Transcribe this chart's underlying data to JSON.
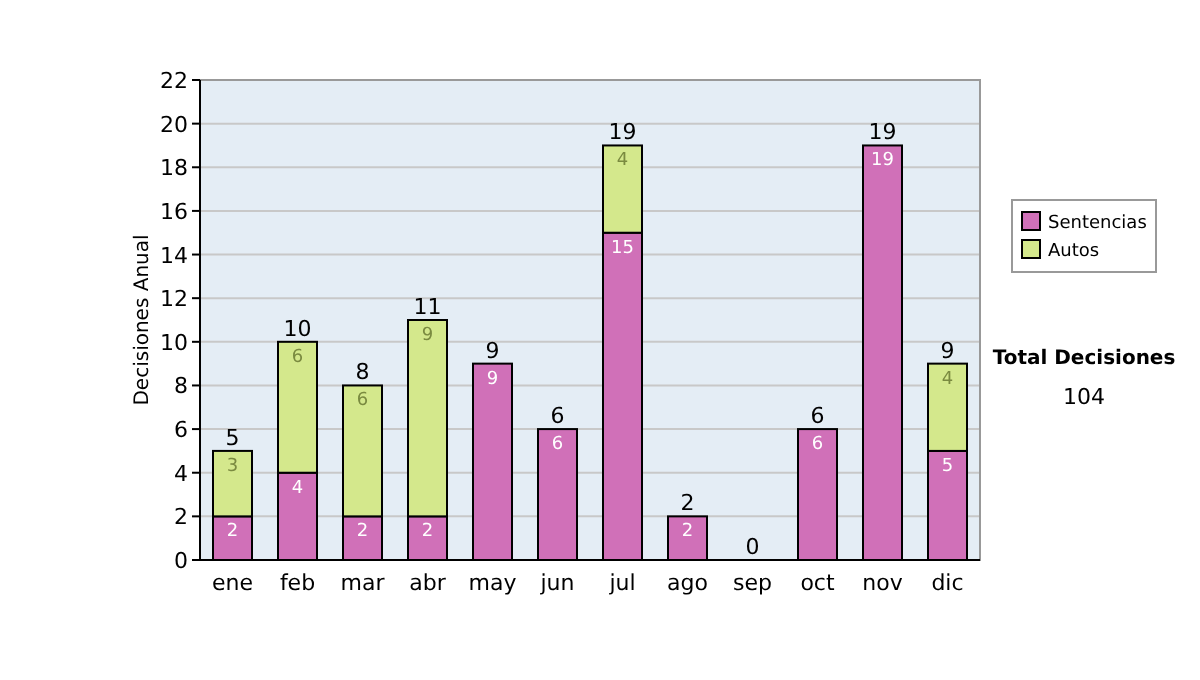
{
  "chart_data": {
    "type": "bar",
    "ylabel": "Decisiones Anual",
    "categories": [
      "ene",
      "feb",
      "mar",
      "abr",
      "may",
      "jun",
      "jul",
      "ago",
      "sep",
      "oct",
      "nov",
      "dic"
    ],
    "series": [
      {
        "name": "Sentencias",
        "color": "#d070b8",
        "values": [
          2,
          4,
          2,
          2,
          9,
          6,
          15,
          2,
          0,
          6,
          19,
          5
        ],
        "value_labels": [
          "2",
          "4",
          "2",
          "2",
          "9",
          "6",
          "15",
          "2",
          null,
          "6",
          "19",
          "5"
        ]
      },
      {
        "name": "Autos",
        "color": "#d4e88c",
        "values": [
          3,
          6,
          6,
          9,
          0,
          0,
          4,
          0,
          0,
          0,
          0,
          4
        ],
        "value_labels": [
          "3",
          "6",
          "6",
          "9",
          null,
          null,
          "4",
          null,
          null,
          null,
          null,
          "4"
        ]
      }
    ],
    "stacked": true,
    "totals": [
      "5",
      "10",
      "8",
      "11",
      "9",
      "6",
      "19",
      "2",
      "0",
      "6",
      "19",
      "9"
    ],
    "ylim": [
      0,
      22
    ],
    "yticks": [
      0,
      2,
      4,
      6,
      8,
      10,
      12,
      14,
      16,
      18,
      20,
      22
    ],
    "grid": "y",
    "legend": "right",
    "annotations": [
      "Total Decisiones",
      "104"
    ]
  }
}
